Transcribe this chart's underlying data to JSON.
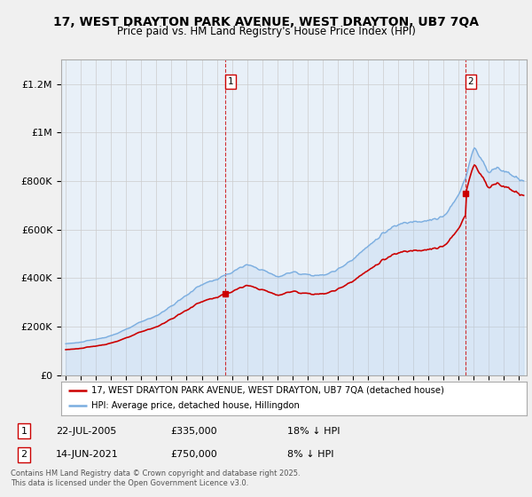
{
  "title_line1": "17, WEST DRAYTON PARK AVENUE, WEST DRAYTON, UB7 7QA",
  "title_line2": "Price paid vs. HM Land Registry's House Price Index (HPI)",
  "legend_label_red": "17, WEST DRAYTON PARK AVENUE, WEST DRAYTON, UB7 7QA (detached house)",
  "legend_label_blue": "HPI: Average price, detached house, Hillingdon",
  "footer": "Contains HM Land Registry data © Crown copyright and database right 2025.\nThis data is licensed under the Open Government Licence v3.0.",
  "annotation1_label": "1",
  "annotation1_date": "22-JUL-2005",
  "annotation1_price": "£335,000",
  "annotation1_hpi": "18% ↓ HPI",
  "annotation2_label": "2",
  "annotation2_date": "14-JUN-2021",
  "annotation2_price": "£750,000",
  "annotation2_hpi": "8% ↓ HPI",
  "color_red": "#cc0000",
  "color_blue": "#7aade0",
  "color_blue_fill": "#ddeeff",
  "color_vline": "#cc0000",
  "background_color": "#f0f0f0",
  "plot_background": "#ffffff",
  "ylim_max": 1300000,
  "yticks": [
    0,
    200000,
    400000,
    600000,
    800000,
    1000000,
    1200000
  ],
  "ytick_labels": [
    "£0",
    "£200K",
    "£400K",
    "£600K",
    "£800K",
    "£1M",
    "£1.2M"
  ],
  "sale1_x": 2005.54,
  "sale1_y": 335000,
  "sale2_x": 2021.45,
  "sale2_y": 750000,
  "xmin": 1994.7,
  "xmax": 2025.5
}
